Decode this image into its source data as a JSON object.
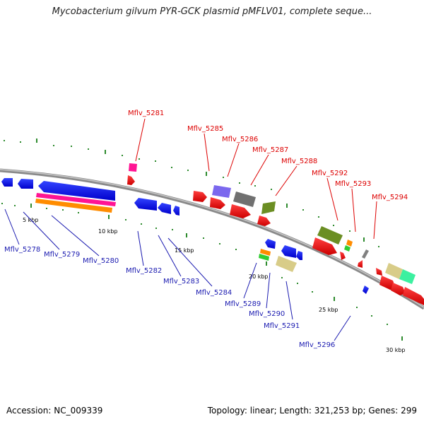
{
  "title": "Mycobacterium gilvum PYR-GCK plasmid pMFLV01, complete seque...",
  "accession": "Accession: NC_009339",
  "summary": "Topology: linear; Length: 321,253 bp; Genes: 299",
  "colors": {
    "backbone": "#8a8a8a",
    "forward_label": "#dd0000",
    "reverse_label": "#1a1ab0",
    "tick": "#2e8b2e"
  },
  "ticks": {
    "unit": "kbp",
    "labels": [
      "5 kbp",
      "10 kbp",
      "15 kbp",
      "20 kbp",
      "25 kbp",
      "30 kbp"
    ]
  },
  "genes": {
    "forward": [
      "Mflv_5281",
      "Mflv_5285",
      "Mflv_5286",
      "Mflv_5287",
      "Mflv_5288",
      "Mflv_5292",
      "Mflv_5293",
      "Mflv_5294"
    ],
    "reverse": [
      "Mflv_5278",
      "Mflv_5279",
      "Mflv_5280",
      "Mflv_5282",
      "Mflv_5283",
      "Mflv_5284",
      "Mflv_5289",
      "Mflv_5290",
      "Mflv_5291",
      "Mflv_5296"
    ]
  }
}
